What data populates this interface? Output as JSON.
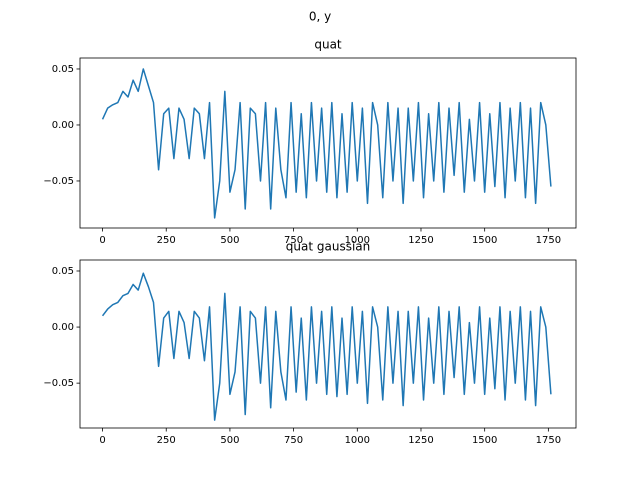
{
  "title": "0, y",
  "chart_data": [
    {
      "type": "line",
      "title": "quat",
      "x": [
        0,
        20,
        40,
        60,
        80,
        100,
        120,
        140,
        160,
        180,
        200,
        220,
        240,
        260,
        280,
        300,
        320,
        340,
        360,
        380,
        400,
        420,
        440,
        460,
        480,
        500,
        520,
        540,
        560,
        580,
        600,
        620,
        640,
        660,
        680,
        700,
        720,
        740,
        760,
        780,
        800,
        820,
        840,
        860,
        880,
        900,
        920,
        940,
        960,
        980,
        1000,
        1020,
        1040,
        1060,
        1080,
        1100,
        1120,
        1140,
        1160,
        1180,
        1200,
        1220,
        1240,
        1260,
        1280,
        1300,
        1320,
        1340,
        1360,
        1380,
        1400,
        1420,
        1440,
        1460,
        1480,
        1500,
        1520,
        1540,
        1560,
        1580,
        1600,
        1620,
        1640,
        1660,
        1680,
        1700,
        1720,
        1740,
        1760
      ],
      "series": [
        {
          "color": "#1f77b4",
          "values": [
            0.005,
            0.015,
            0.018,
            0.02,
            0.03,
            0.025,
            0.04,
            0.03,
            0.05,
            0.035,
            0.02,
            -0.04,
            0.01,
            0.015,
            -0.03,
            0.015,
            0.005,
            -0.03,
            0.015,
            0.01,
            -0.03,
            0.02,
            -0.083,
            -0.05,
            0.03,
            -0.06,
            -0.04,
            0.02,
            -0.075,
            0.015,
            0.01,
            -0.05,
            0.02,
            -0.075,
            0.015,
            -0.04,
            -0.065,
            0.02,
            -0.06,
            0.01,
            -0.065,
            0.02,
            -0.05,
            0.015,
            -0.06,
            0.02,
            -0.065,
            0.01,
            -0.06,
            0.02,
            -0.05,
            0.015,
            -0.07,
            0.02,
            0.0,
            -0.065,
            0.02,
            -0.05,
            0.015,
            -0.07,
            0.015,
            -0.05,
            0.02,
            -0.065,
            0.01,
            -0.05,
            0.02,
            -0.06,
            0.015,
            -0.045,
            0.02,
            -0.06,
            0.005,
            -0.05,
            0.02,
            -0.06,
            0.01,
            -0.055,
            0.02,
            -0.065,
            0.015,
            -0.05,
            0.02,
            -0.065,
            0.015,
            -0.07,
            0.02,
            0.0,
            -0.055
          ]
        }
      ],
      "xlim": [
        -88.5,
        1858.5
      ],
      "ylim": [
        -0.092,
        0.0598
      ],
      "xticks": [
        0,
        250,
        500,
        750,
        1000,
        1250,
        1500,
        1750
      ],
      "yticks": [
        {
          "value": -0.05,
          "label": "−0.05"
        },
        {
          "value": 0.0,
          "label": "0.00"
        },
        {
          "value": 0.05,
          "label": "0.05"
        }
      ]
    },
    {
      "type": "line",
      "title": "quat gaussian",
      "x": [
        0,
        20,
        40,
        60,
        80,
        100,
        120,
        140,
        160,
        180,
        200,
        220,
        240,
        260,
        280,
        300,
        320,
        340,
        360,
        380,
        400,
        420,
        440,
        460,
        480,
        500,
        520,
        540,
        560,
        580,
        600,
        620,
        640,
        660,
        680,
        700,
        720,
        740,
        760,
        780,
        800,
        820,
        840,
        860,
        880,
        900,
        920,
        940,
        960,
        980,
        1000,
        1020,
        1040,
        1060,
        1080,
        1100,
        1120,
        1140,
        1160,
        1180,
        1200,
        1220,
        1240,
        1260,
        1280,
        1300,
        1320,
        1340,
        1360,
        1380,
        1400,
        1420,
        1440,
        1460,
        1480,
        1500,
        1520,
        1540,
        1560,
        1580,
        1600,
        1620,
        1640,
        1660,
        1680,
        1700,
        1720,
        1740,
        1760
      ],
      "series": [
        {
          "color": "#1f77b4",
          "values": [
            0.01,
            0.016,
            0.02,
            0.022,
            0.028,
            0.03,
            0.038,
            0.033,
            0.048,
            0.036,
            0.022,
            -0.035,
            0.008,
            0.014,
            -0.028,
            0.014,
            0.004,
            -0.028,
            0.014,
            0.008,
            -0.03,
            0.018,
            -0.083,
            -0.05,
            0.03,
            -0.06,
            -0.04,
            0.018,
            -0.078,
            0.014,
            0.008,
            -0.05,
            0.018,
            -0.072,
            0.014,
            -0.04,
            -0.065,
            0.018,
            -0.058,
            0.008,
            -0.065,
            0.018,
            -0.05,
            0.014,
            -0.06,
            0.018,
            -0.062,
            0.008,
            -0.06,
            0.018,
            -0.05,
            0.014,
            -0.068,
            0.018,
            0.0,
            -0.065,
            0.018,
            -0.05,
            0.014,
            -0.07,
            0.014,
            -0.05,
            0.018,
            -0.065,
            0.008,
            -0.05,
            0.018,
            -0.06,
            0.014,
            -0.045,
            0.018,
            -0.06,
            0.004,
            -0.05,
            0.018,
            -0.06,
            0.008,
            -0.055,
            0.018,
            -0.065,
            0.014,
            -0.05,
            0.018,
            -0.065,
            0.014,
            -0.07,
            0.018,
            0.0,
            -0.06
          ]
        }
      ],
      "xlim": [
        -88.5,
        1858.5
      ],
      "ylim": [
        -0.09,
        0.0598
      ],
      "xticks": [
        0,
        250,
        500,
        750,
        1000,
        1250,
        1500,
        1750
      ],
      "yticks": [
        {
          "value": -0.05,
          "label": "−0.05"
        },
        {
          "value": 0.0,
          "label": "0.00"
        },
        {
          "value": 0.05,
          "label": "0.05"
        }
      ]
    }
  ]
}
